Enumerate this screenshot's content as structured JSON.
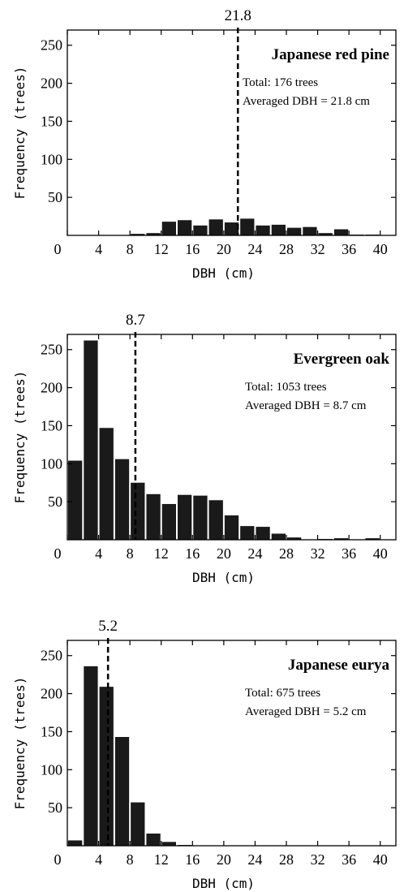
{
  "chart_data": [
    {
      "type": "bar",
      "title": "Japanese red pine",
      "annotation_lines": [
        "Total: 176 trees",
        "Averaged DBH = 21.8 cm"
      ],
      "mean_marker": {
        "value": 21.8,
        "label": "21.8"
      },
      "xlabel": "DBH (cm)",
      "ylabel": "Frequency (trees)",
      "xlim": [
        0,
        42
      ],
      "ylim": [
        0,
        270
      ],
      "xticks": [
        0,
        4,
        8,
        12,
        16,
        20,
        24,
        28,
        32,
        36,
        40
      ],
      "yticks": [
        50,
        100,
        150,
        200,
        250
      ],
      "bin_width": 2,
      "x": [
        1,
        3,
        5,
        7,
        9,
        11,
        13,
        15,
        17,
        19,
        21,
        23,
        25,
        27,
        29,
        31,
        33,
        35,
        37,
        39,
        41
      ],
      "values": [
        0,
        0,
        0,
        0,
        2,
        3,
        18,
        20,
        13,
        21,
        17,
        22,
        13,
        14,
        10,
        11,
        3,
        8,
        1,
        1,
        0
      ]
    },
    {
      "type": "bar",
      "title": "Evergreen oak",
      "annotation_lines": [
        "Total: 1053 trees",
        "Averaged DBH = 8.7 cm"
      ],
      "mean_marker": {
        "value": 8.7,
        "label": "8.7"
      },
      "xlabel": "DBH (cm)",
      "ylabel": "Frequency (trees)",
      "xlim": [
        0,
        42
      ],
      "ylim": [
        0,
        270
      ],
      "xticks": [
        0,
        4,
        8,
        12,
        16,
        20,
        24,
        28,
        32,
        36,
        40
      ],
      "yticks": [
        50,
        100,
        150,
        200,
        250
      ],
      "bin_width": 2,
      "x": [
        1,
        3,
        5,
        7,
        9,
        11,
        13,
        15,
        17,
        19,
        21,
        23,
        25,
        27,
        29,
        31,
        33,
        35,
        37,
        39,
        41
      ],
      "values": [
        104,
        262,
        147,
        106,
        75,
        60,
        47,
        59,
        58,
        52,
        32,
        18,
        17,
        8,
        3,
        0,
        1,
        2,
        0,
        2,
        0
      ]
    },
    {
      "type": "bar",
      "title": "Japanese eurya",
      "annotation_lines": [
        "Total: 675 trees",
        "Averaged DBH = 5.2 cm"
      ],
      "mean_marker": {
        "value": 5.2,
        "label": "5.2"
      },
      "xlabel": "DBH (cm)",
      "ylabel": "Frequency (trees)",
      "xlim": [
        0,
        42
      ],
      "ylim": [
        0,
        270
      ],
      "xticks": [
        0,
        4,
        8,
        12,
        16,
        20,
        24,
        28,
        32,
        36,
        40
      ],
      "yticks": [
        50,
        100,
        150,
        200,
        250
      ],
      "bin_width": 2,
      "x": [
        1,
        3,
        5,
        7,
        9,
        11,
        13,
        15,
        17,
        19,
        21,
        23,
        25,
        27,
        29,
        31,
        33,
        35,
        37,
        39,
        41
      ],
      "values": [
        7,
        236,
        209,
        143,
        57,
        16,
        5,
        1,
        0,
        0,
        0,
        0,
        0,
        0,
        0,
        0,
        0,
        0,
        0,
        0,
        0
      ]
    }
  ],
  "style": {
    "bar_color": "#1a1a1a",
    "axis_color": "#000000",
    "background": "#ffffff"
  }
}
